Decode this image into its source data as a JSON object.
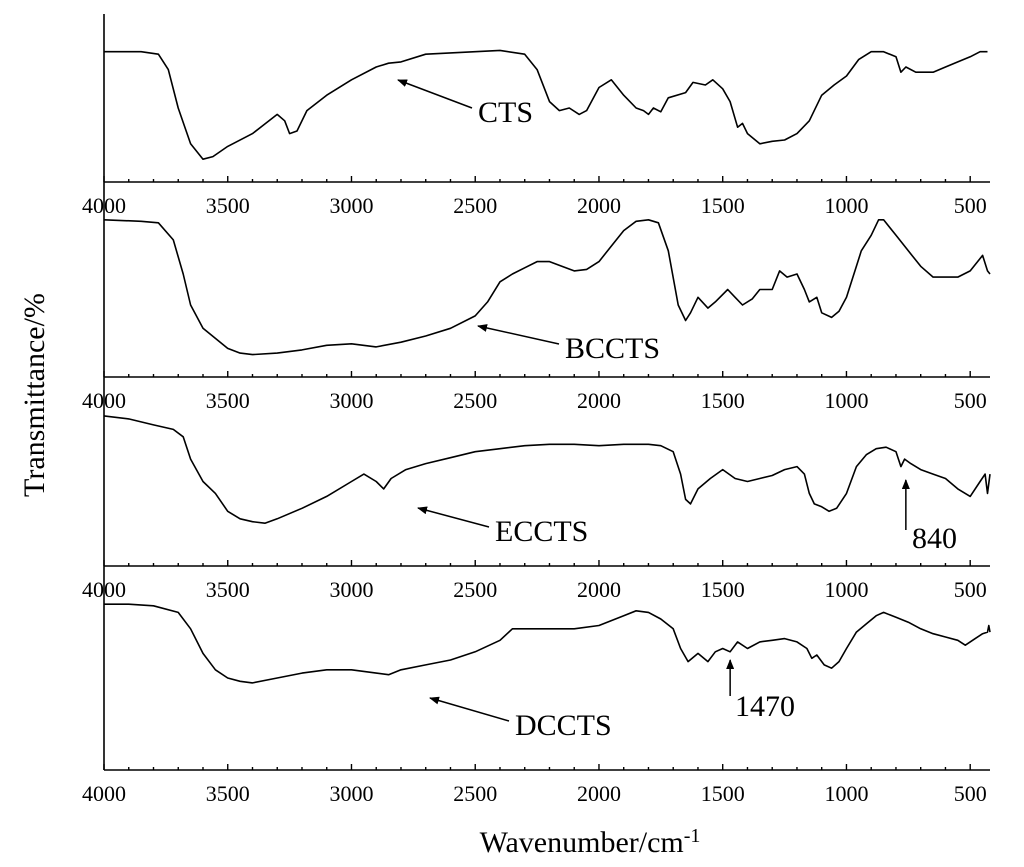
{
  "chart_data": {
    "type": "line",
    "layout": "stacked-panels",
    "xlabel": "Wavenumber/cm",
    "xlabel_superscript": "-1",
    "ylabel": "Transmittance/%",
    "xlim": [
      4000,
      420
    ],
    "x_reversed": true,
    "xticks": [
      4000,
      3500,
      3000,
      2500,
      2000,
      1500,
      1000,
      500
    ],
    "y_ticks_shown": false,
    "grid": false,
    "panels": [
      {
        "name": "CTS",
        "label_at_wavenumber": 2800,
        "points": [
          [
            4000,
            0.94
          ],
          [
            3850,
            0.94
          ],
          [
            3780,
            0.92
          ],
          [
            3740,
            0.8
          ],
          [
            3700,
            0.5
          ],
          [
            3650,
            0.22
          ],
          [
            3600,
            0.1
          ],
          [
            3560,
            0.12
          ],
          [
            3500,
            0.2
          ],
          [
            3400,
            0.3
          ],
          [
            3300,
            0.45
          ],
          [
            3270,
            0.4
          ],
          [
            3250,
            0.3
          ],
          [
            3220,
            0.32
          ],
          [
            3180,
            0.48
          ],
          [
            3100,
            0.6
          ],
          [
            3000,
            0.72
          ],
          [
            2900,
            0.82
          ],
          [
            2850,
            0.85
          ],
          [
            2800,
            0.86
          ],
          [
            2700,
            0.92
          ],
          [
            2500,
            0.94
          ],
          [
            2400,
            0.95
          ],
          [
            2300,
            0.92
          ],
          [
            2250,
            0.8
          ],
          [
            2200,
            0.55
          ],
          [
            2160,
            0.48
          ],
          [
            2120,
            0.5
          ],
          [
            2080,
            0.45
          ],
          [
            2050,
            0.48
          ],
          [
            2000,
            0.66
          ],
          [
            1950,
            0.72
          ],
          [
            1900,
            0.6
          ],
          [
            1850,
            0.5
          ],
          [
            1820,
            0.48
          ],
          [
            1800,
            0.45
          ],
          [
            1780,
            0.5
          ],
          [
            1750,
            0.47
          ],
          [
            1720,
            0.58
          ],
          [
            1650,
            0.62
          ],
          [
            1620,
            0.7
          ],
          [
            1570,
            0.68
          ],
          [
            1540,
            0.72
          ],
          [
            1500,
            0.65
          ],
          [
            1470,
            0.55
          ],
          [
            1440,
            0.35
          ],
          [
            1420,
            0.38
          ],
          [
            1400,
            0.3
          ],
          [
            1350,
            0.22
          ],
          [
            1300,
            0.24
          ],
          [
            1250,
            0.25
          ],
          [
            1200,
            0.3
          ],
          [
            1150,
            0.4
          ],
          [
            1100,
            0.6
          ],
          [
            1050,
            0.68
          ],
          [
            1000,
            0.75
          ],
          [
            950,
            0.88
          ],
          [
            900,
            0.94
          ],
          [
            850,
            0.94
          ],
          [
            800,
            0.9
          ],
          [
            780,
            0.78
          ],
          [
            760,
            0.82
          ],
          [
            720,
            0.78
          ],
          [
            650,
            0.78
          ],
          [
            600,
            0.82
          ],
          [
            550,
            0.86
          ],
          [
            500,
            0.9
          ],
          [
            460,
            0.94
          ],
          [
            430,
            0.94
          ]
        ]
      },
      {
        "name": "BCCTS",
        "label_at_wavenumber": 2480,
        "points": [
          [
            4000,
            0.95
          ],
          [
            3850,
            0.94
          ],
          [
            3780,
            0.93
          ],
          [
            3720,
            0.82
          ],
          [
            3680,
            0.6
          ],
          [
            3650,
            0.4
          ],
          [
            3600,
            0.25
          ],
          [
            3500,
            0.12
          ],
          [
            3450,
            0.09
          ],
          [
            3400,
            0.08
          ],
          [
            3300,
            0.09
          ],
          [
            3200,
            0.11
          ],
          [
            3100,
            0.14
          ],
          [
            3000,
            0.15
          ],
          [
            2900,
            0.13
          ],
          [
            2800,
            0.16
          ],
          [
            2700,
            0.2
          ],
          [
            2600,
            0.25
          ],
          [
            2500,
            0.33
          ],
          [
            2450,
            0.42
          ],
          [
            2400,
            0.55
          ],
          [
            2350,
            0.6
          ],
          [
            2300,
            0.64
          ],
          [
            2250,
            0.68
          ],
          [
            2200,
            0.68
          ],
          [
            2150,
            0.65
          ],
          [
            2100,
            0.62
          ],
          [
            2050,
            0.63
          ],
          [
            2000,
            0.68
          ],
          [
            1950,
            0.78
          ],
          [
            1900,
            0.88
          ],
          [
            1850,
            0.94
          ],
          [
            1800,
            0.95
          ],
          [
            1760,
            0.93
          ],
          [
            1720,
            0.75
          ],
          [
            1680,
            0.4
          ],
          [
            1650,
            0.3
          ],
          [
            1630,
            0.35
          ],
          [
            1600,
            0.45
          ],
          [
            1560,
            0.38
          ],
          [
            1530,
            0.42
          ],
          [
            1480,
            0.5
          ],
          [
            1450,
            0.45
          ],
          [
            1420,
            0.4
          ],
          [
            1380,
            0.44
          ],
          [
            1350,
            0.5
          ],
          [
            1300,
            0.5
          ],
          [
            1270,
            0.62
          ],
          [
            1240,
            0.58
          ],
          [
            1200,
            0.6
          ],
          [
            1170,
            0.5
          ],
          [
            1150,
            0.42
          ],
          [
            1120,
            0.45
          ],
          [
            1100,
            0.35
          ],
          [
            1060,
            0.32
          ],
          [
            1030,
            0.36
          ],
          [
            1000,
            0.45
          ],
          [
            960,
            0.65
          ],
          [
            940,
            0.75
          ],
          [
            900,
            0.85
          ],
          [
            870,
            0.95
          ],
          [
            850,
            0.95
          ],
          [
            800,
            0.85
          ],
          [
            750,
            0.75
          ],
          [
            700,
            0.65
          ],
          [
            650,
            0.58
          ],
          [
            600,
            0.58
          ],
          [
            550,
            0.58
          ],
          [
            500,
            0.62
          ],
          [
            450,
            0.72
          ],
          [
            430,
            0.62
          ],
          [
            420,
            0.6
          ]
        ]
      },
      {
        "name": "ECCTS",
        "label_at_wavenumber": 2770,
        "points": [
          [
            4000,
            0.94
          ],
          [
            3900,
            0.92
          ],
          [
            3800,
            0.88
          ],
          [
            3720,
            0.85
          ],
          [
            3680,
            0.8
          ],
          [
            3650,
            0.65
          ],
          [
            3600,
            0.5
          ],
          [
            3550,
            0.42
          ],
          [
            3500,
            0.3
          ],
          [
            3450,
            0.25
          ],
          [
            3400,
            0.23
          ],
          [
            3350,
            0.22
          ],
          [
            3300,
            0.25
          ],
          [
            3200,
            0.32
          ],
          [
            3100,
            0.4
          ],
          [
            3000,
            0.5
          ],
          [
            2950,
            0.55
          ],
          [
            2900,
            0.5
          ],
          [
            2870,
            0.45
          ],
          [
            2840,
            0.52
          ],
          [
            2780,
            0.58
          ],
          [
            2700,
            0.62
          ],
          [
            2600,
            0.66
          ],
          [
            2500,
            0.7
          ],
          [
            2400,
            0.72
          ],
          [
            2300,
            0.74
          ],
          [
            2200,
            0.75
          ],
          [
            2100,
            0.75
          ],
          [
            2000,
            0.74
          ],
          [
            1900,
            0.75
          ],
          [
            1800,
            0.75
          ],
          [
            1750,
            0.74
          ],
          [
            1700,
            0.7
          ],
          [
            1670,
            0.55
          ],
          [
            1650,
            0.38
          ],
          [
            1630,
            0.35
          ],
          [
            1600,
            0.45
          ],
          [
            1550,
            0.52
          ],
          [
            1500,
            0.58
          ],
          [
            1450,
            0.52
          ],
          [
            1400,
            0.5
          ],
          [
            1350,
            0.52
          ],
          [
            1300,
            0.54
          ],
          [
            1250,
            0.58
          ],
          [
            1200,
            0.6
          ],
          [
            1170,
            0.55
          ],
          [
            1150,
            0.42
          ],
          [
            1130,
            0.35
          ],
          [
            1100,
            0.33
          ],
          [
            1070,
            0.3
          ],
          [
            1040,
            0.32
          ],
          [
            1000,
            0.42
          ],
          [
            960,
            0.6
          ],
          [
            920,
            0.68
          ],
          [
            880,
            0.72
          ],
          [
            840,
            0.73
          ],
          [
            800,
            0.7
          ],
          [
            780,
            0.6
          ],
          [
            765,
            0.65
          ],
          [
            740,
            0.62
          ],
          [
            700,
            0.58
          ],
          [
            650,
            0.55
          ],
          [
            600,
            0.52
          ],
          [
            550,
            0.45
          ],
          [
            500,
            0.4
          ],
          [
            460,
            0.5
          ],
          [
            440,
            0.55
          ],
          [
            430,
            0.42
          ],
          [
            420,
            0.55
          ]
        ]
      },
      {
        "name": "DCCTS",
        "label_at_wavenumber": 2760,
        "points": [
          [
            4000,
            0.95
          ],
          [
            3900,
            0.95
          ],
          [
            3800,
            0.94
          ],
          [
            3700,
            0.9
          ],
          [
            3650,
            0.8
          ],
          [
            3600,
            0.65
          ],
          [
            3550,
            0.55
          ],
          [
            3500,
            0.5
          ],
          [
            3450,
            0.48
          ],
          [
            3400,
            0.47
          ],
          [
            3300,
            0.5
          ],
          [
            3200,
            0.53
          ],
          [
            3100,
            0.55
          ],
          [
            3000,
            0.55
          ],
          [
            2900,
            0.53
          ],
          [
            2850,
            0.52
          ],
          [
            2800,
            0.55
          ],
          [
            2700,
            0.58
          ],
          [
            2600,
            0.61
          ],
          [
            2500,
            0.66
          ],
          [
            2400,
            0.73
          ],
          [
            2350,
            0.8
          ],
          [
            2300,
            0.8
          ],
          [
            2200,
            0.8
          ],
          [
            2100,
            0.8
          ],
          [
            2000,
            0.82
          ],
          [
            1900,
            0.88
          ],
          [
            1850,
            0.91
          ],
          [
            1800,
            0.9
          ],
          [
            1750,
            0.86
          ],
          [
            1700,
            0.8
          ],
          [
            1670,
            0.68
          ],
          [
            1640,
            0.6
          ],
          [
            1600,
            0.65
          ],
          [
            1560,
            0.6
          ],
          [
            1530,
            0.66
          ],
          [
            1500,
            0.68
          ],
          [
            1470,
            0.66
          ],
          [
            1440,
            0.72
          ],
          [
            1400,
            0.68
          ],
          [
            1350,
            0.72
          ],
          [
            1300,
            0.73
          ],
          [
            1250,
            0.74
          ],
          [
            1200,
            0.72
          ],
          [
            1160,
            0.68
          ],
          [
            1140,
            0.62
          ],
          [
            1120,
            0.64
          ],
          [
            1090,
            0.58
          ],
          [
            1060,
            0.56
          ],
          [
            1030,
            0.6
          ],
          [
            1000,
            0.68
          ],
          [
            960,
            0.78
          ],
          [
            920,
            0.83
          ],
          [
            880,
            0.88
          ],
          [
            850,
            0.9
          ],
          [
            800,
            0.87
          ],
          [
            750,
            0.84
          ],
          [
            700,
            0.8
          ],
          [
            650,
            0.77
          ],
          [
            600,
            0.75
          ],
          [
            550,
            0.73
          ],
          [
            520,
            0.7
          ],
          [
            480,
            0.74
          ],
          [
            450,
            0.77
          ],
          [
            430,
            0.78
          ],
          [
            425,
            0.82
          ],
          [
            420,
            0.78
          ]
        ]
      }
    ],
    "annotations": [
      {
        "panel": 2,
        "text": "840",
        "wavenumber": 760
      },
      {
        "panel": 3,
        "text": "1470",
        "wavenumber": 1470
      }
    ]
  }
}
